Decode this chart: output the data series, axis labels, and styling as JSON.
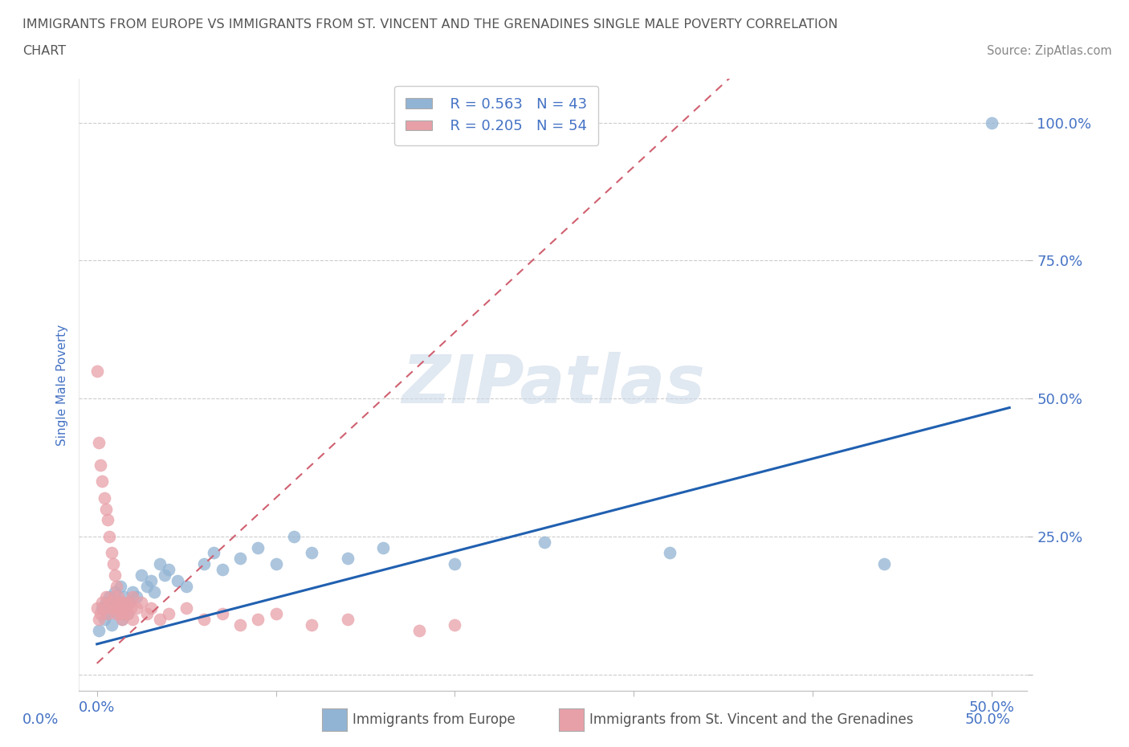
{
  "title_line1": "IMMIGRANTS FROM EUROPE VS IMMIGRANTS FROM ST. VINCENT AND THE GRENADINES SINGLE MALE POVERTY CORRELATION",
  "title_line2": "CHART",
  "source_text": "Source: ZipAtlas.com",
  "ylabel": "Single Male Poverty",
  "xlim": [
    -0.01,
    0.52
  ],
  "ylim": [
    -0.03,
    1.08
  ],
  "watermark_text": "ZIPatlas",
  "legend_europe_R": "R = 0.563",
  "legend_europe_N": "N = 43",
  "legend_stvincent_R": "R = 0.205",
  "legend_stvincent_N": "N = 54",
  "blue_color": "#92b4d4",
  "pink_color": "#e8a0a8",
  "blue_line_color": "#2060b0",
  "pink_line_color": "#d06070",
  "title_color": "#555555",
  "tick_color": "#4472c4",
  "europe_x": [
    0.001,
    0.003,
    0.004,
    0.005,
    0.006,
    0.007,
    0.008,
    0.009,
    0.01,
    0.011,
    0.012,
    0.013,
    0.014,
    0.015,
    0.016,
    0.017,
    0.018,
    0.02,
    0.022,
    0.025,
    0.028,
    0.03,
    0.032,
    0.035,
    0.038,
    0.04,
    0.045,
    0.05,
    0.06,
    0.065,
    0.07,
    0.08,
    0.09,
    0.1,
    0.11,
    0.12,
    0.14,
    0.16,
    0.2,
    0.25,
    0.32,
    0.44,
    0.5
  ],
  "europe_y": [
    0.08,
    0.12,
    0.1,
    0.13,
    0.11,
    0.14,
    0.09,
    0.12,
    0.15,
    0.11,
    0.13,
    0.16,
    0.1,
    0.14,
    0.12,
    0.11,
    0.13,
    0.15,
    0.14,
    0.18,
    0.16,
    0.17,
    0.15,
    0.2,
    0.18,
    0.19,
    0.17,
    0.16,
    0.2,
    0.22,
    0.19,
    0.21,
    0.23,
    0.2,
    0.25,
    0.22,
    0.21,
    0.23,
    0.2,
    0.24,
    0.22,
    0.2,
    1.0
  ],
  "stvincent_x": [
    0.0,
    0.0,
    0.001,
    0.001,
    0.002,
    0.002,
    0.003,
    0.003,
    0.004,
    0.004,
    0.005,
    0.005,
    0.006,
    0.006,
    0.007,
    0.007,
    0.008,
    0.008,
    0.009,
    0.009,
    0.01,
    0.01,
    0.011,
    0.011,
    0.012,
    0.012,
    0.013,
    0.013,
    0.014,
    0.014,
    0.015,
    0.015,
    0.016,
    0.017,
    0.018,
    0.019,
    0.02,
    0.02,
    0.022,
    0.025,
    0.028,
    0.03,
    0.035,
    0.04,
    0.05,
    0.06,
    0.07,
    0.08,
    0.09,
    0.1,
    0.12,
    0.14,
    0.18,
    0.2
  ],
  "stvincent_y": [
    0.55,
    0.12,
    0.42,
    0.1,
    0.38,
    0.11,
    0.35,
    0.13,
    0.32,
    0.12,
    0.3,
    0.14,
    0.28,
    0.11,
    0.25,
    0.13,
    0.22,
    0.12,
    0.2,
    0.14,
    0.18,
    0.12,
    0.16,
    0.11,
    0.14,
    0.12,
    0.13,
    0.11,
    0.12,
    0.1,
    0.13,
    0.11,
    0.12,
    0.11,
    0.13,
    0.12,
    0.14,
    0.1,
    0.12,
    0.13,
    0.11,
    0.12,
    0.1,
    0.11,
    0.12,
    0.1,
    0.11,
    0.09,
    0.1,
    0.11,
    0.09,
    0.1,
    0.08,
    0.09
  ]
}
